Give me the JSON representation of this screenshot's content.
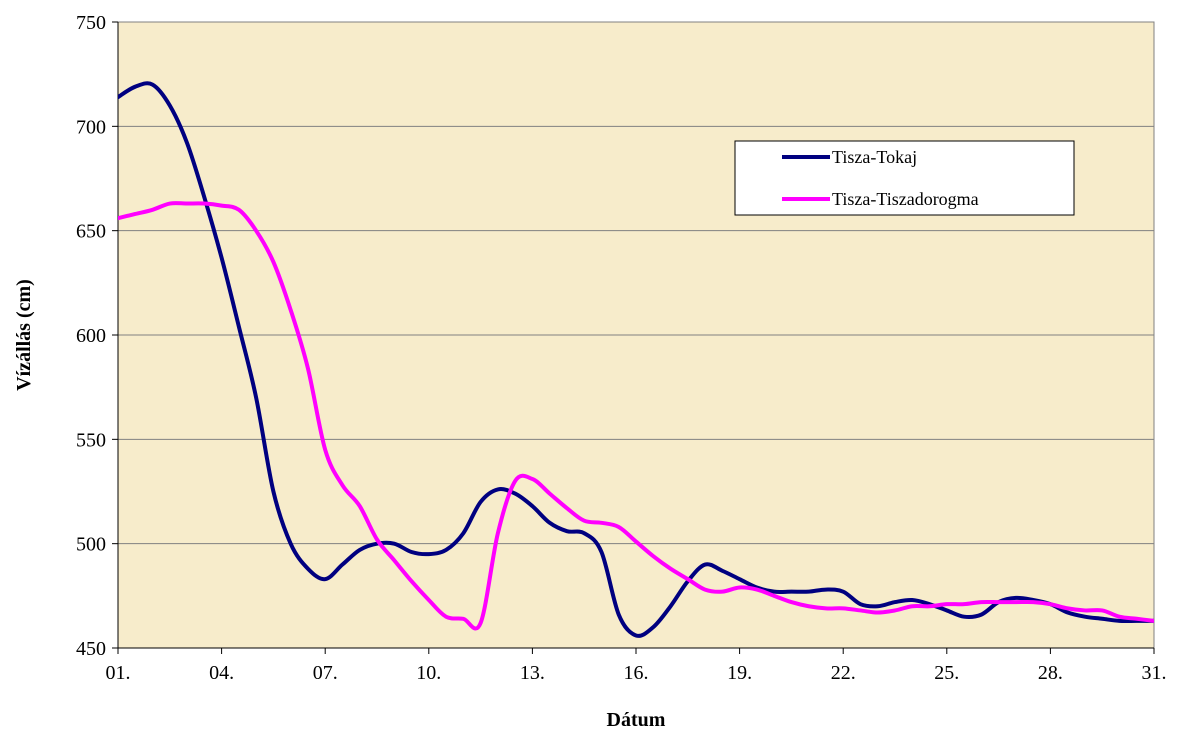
{
  "chart_data": {
    "type": "line",
    "title": "",
    "xlabel": "Dátum",
    "ylabel": "Vízállás (cm)",
    "ylim": [
      450,
      750
    ],
    "yticks": [
      "450",
      "500",
      "550",
      "600",
      "650",
      "700",
      "750"
    ],
    "xlim": [
      1,
      31
    ],
    "xticks": [
      "01.",
      "04.",
      "07.",
      "10.",
      "13.",
      "16.",
      "19.",
      "22.",
      "25.",
      "28.",
      "31."
    ],
    "grid": "horizontal",
    "plot_background": "#f7eccb",
    "legend_position": "upper-right, inside plot",
    "series": [
      {
        "name": "Tisza-Tokaj",
        "color": "#000080",
        "x": [
          1,
          1.5,
          2,
          2.5,
          3,
          3.5,
          4,
          4.5,
          5,
          5.5,
          6,
          6.5,
          7,
          7.5,
          8,
          8.5,
          9,
          9.5,
          10,
          10.5,
          11,
          11.5,
          12,
          12.5,
          13,
          13.5,
          14,
          14.5,
          15,
          15.5,
          16,
          16.5,
          17,
          17.5,
          18,
          18.5,
          19,
          19.5,
          20,
          20.5,
          21,
          21.5,
          22,
          22.5,
          23,
          23.5,
          24,
          24.5,
          25,
          25.5,
          26,
          26.5,
          27,
          27.5,
          28,
          28.5,
          29,
          29.5,
          30,
          30.5,
          31
        ],
        "y": [
          714,
          719,
          720,
          710,
          692,
          666,
          637,
          604,
          570,
          525,
          500,
          488,
          483,
          490,
          497,
          500,
          500,
          496,
          495,
          497,
          505,
          520,
          526,
          524,
          518,
          510,
          506,
          505,
          496,
          466,
          456,
          460,
          470,
          482,
          490,
          487,
          483,
          479,
          477,
          477,
          477,
          478,
          477,
          471,
          470,
          472,
          473,
          471,
          468,
          465,
          466,
          472,
          474,
          473,
          471,
          467,
          465,
          464,
          463,
          463,
          463
        ]
      },
      {
        "name": "Tisza-Tiszadorogma",
        "color": "#ff00ff",
        "x": [
          1,
          1.5,
          2,
          2.5,
          3,
          3.5,
          4,
          4.5,
          5,
          5.5,
          6,
          6.5,
          7,
          7.5,
          8,
          8.5,
          9,
          9.5,
          10,
          10.5,
          11,
          11.5,
          12,
          12.5,
          13,
          13.5,
          14,
          14.5,
          15,
          15.5,
          16,
          16.5,
          17,
          17.5,
          18,
          18.5,
          19,
          19.5,
          20,
          20.5,
          21,
          21.5,
          22,
          22.5,
          23,
          23.5,
          24,
          24.5,
          25,
          25.5,
          26,
          26.5,
          27,
          27.5,
          28,
          28.5,
          29,
          29.5,
          30,
          30.5,
          31
        ],
        "y": [
          656,
          658,
          660,
          663,
          663,
          663,
          662,
          660,
          650,
          635,
          612,
          584,
          545,
          528,
          518,
          502,
          492,
          482,
          473,
          465,
          464,
          462,
          505,
          530,
          531,
          524,
          517,
          511,
          510,
          508,
          501,
          494,
          488,
          483,
          478,
          477,
          479,
          478,
          475,
          472,
          470,
          469,
          469,
          468,
          467,
          468,
          470,
          470,
          471,
          471,
          472,
          472,
          472,
          472,
          471,
          469,
          468,
          468,
          465,
          464,
          463
        ]
      }
    ]
  }
}
